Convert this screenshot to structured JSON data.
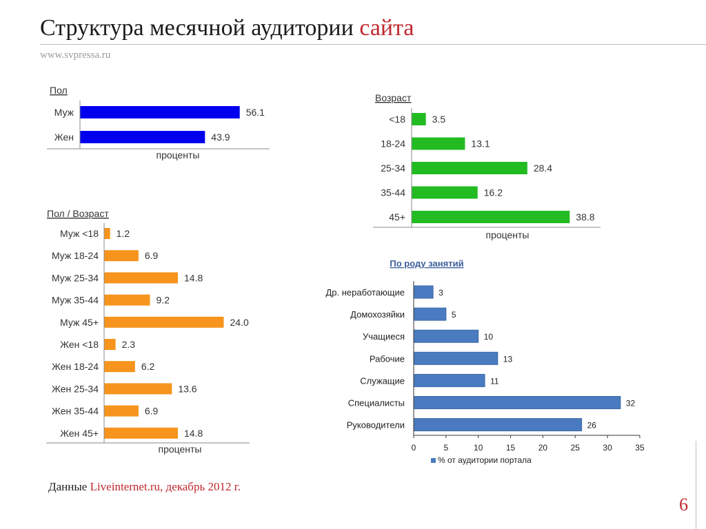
{
  "header": {
    "title_main": "Структура месячной аудитории",
    "title_accent": "сайта",
    "subtitle": "www.svpressa.ru"
  },
  "footer": {
    "source_prefix": "Данные",
    "source_accent": "Liveinternet.ru, декабрь 2012 г.",
    "page_number": "6"
  },
  "colors": {
    "gender": "#0000ee",
    "age": "#22bb22",
    "gender_age": "#f7941d",
    "occupation": "#4a7bc0",
    "accent": "#c0272d"
  },
  "chart_data": [
    {
      "type": "bar",
      "orientation": "horizontal",
      "title": "Пол",
      "xlabel": "проценты",
      "categories": [
        "Муж",
        "Жен"
      ],
      "values": [
        56.1,
        43.9
      ],
      "value_labels": [
        "56.1",
        "43.9"
      ],
      "xlim": [
        0,
        60
      ]
    },
    {
      "type": "bar",
      "orientation": "horizontal",
      "title": "Возраст",
      "xlabel": "проценты",
      "categories": [
        "<18",
        "18-24",
        "25-34",
        "35-44",
        "45+"
      ],
      "values": [
        3.5,
        13.1,
        28.4,
        16.2,
        38.8
      ],
      "value_labels": [
        "3.5",
        "13.1",
        "28.4",
        "16.2",
        "38.8"
      ],
      "xlim": [
        0,
        42
      ]
    },
    {
      "type": "bar",
      "orientation": "horizontal",
      "title": "Пол / Возраст",
      "xlabel": "проценты",
      "categories": [
        "Муж <18",
        "Муж 18-24",
        "Муж 25-34",
        "Муж 35-44",
        "Муж 45+",
        "Жен <18",
        "Жен 18-24",
        "Жен 25-34",
        "Жен 35-44",
        "Жен 45+"
      ],
      "values": [
        1.2,
        6.9,
        14.8,
        9.2,
        24.0,
        2.3,
        6.2,
        13.6,
        6.9,
        14.8
      ],
      "value_labels": [
        "1.2",
        "6.9",
        "14.8",
        "9.2",
        "24.0",
        "2.3",
        "6.2",
        "13.6",
        "6.9",
        "14.8"
      ],
      "xlim": [
        0,
        30
      ]
    },
    {
      "type": "bar",
      "orientation": "horizontal",
      "title": "По роду занятий",
      "categories": [
        "Др. неработающие",
        "Домохозяйки",
        "Учащиеся",
        "Рабочие",
        "Служащие",
        "Специалисты",
        "Руководители"
      ],
      "values": [
        3,
        5,
        10,
        13,
        11,
        32,
        26
      ],
      "value_labels": [
        "3",
        "5",
        "10",
        "13",
        "11",
        "32",
        "26"
      ],
      "xlim": [
        0,
        35
      ],
      "xticks": [
        "0",
        "5",
        "10",
        "15",
        "20",
        "25",
        "30",
        "35"
      ],
      "legend": "% от аудитории портала",
      "legend_position": "bottom"
    }
  ]
}
